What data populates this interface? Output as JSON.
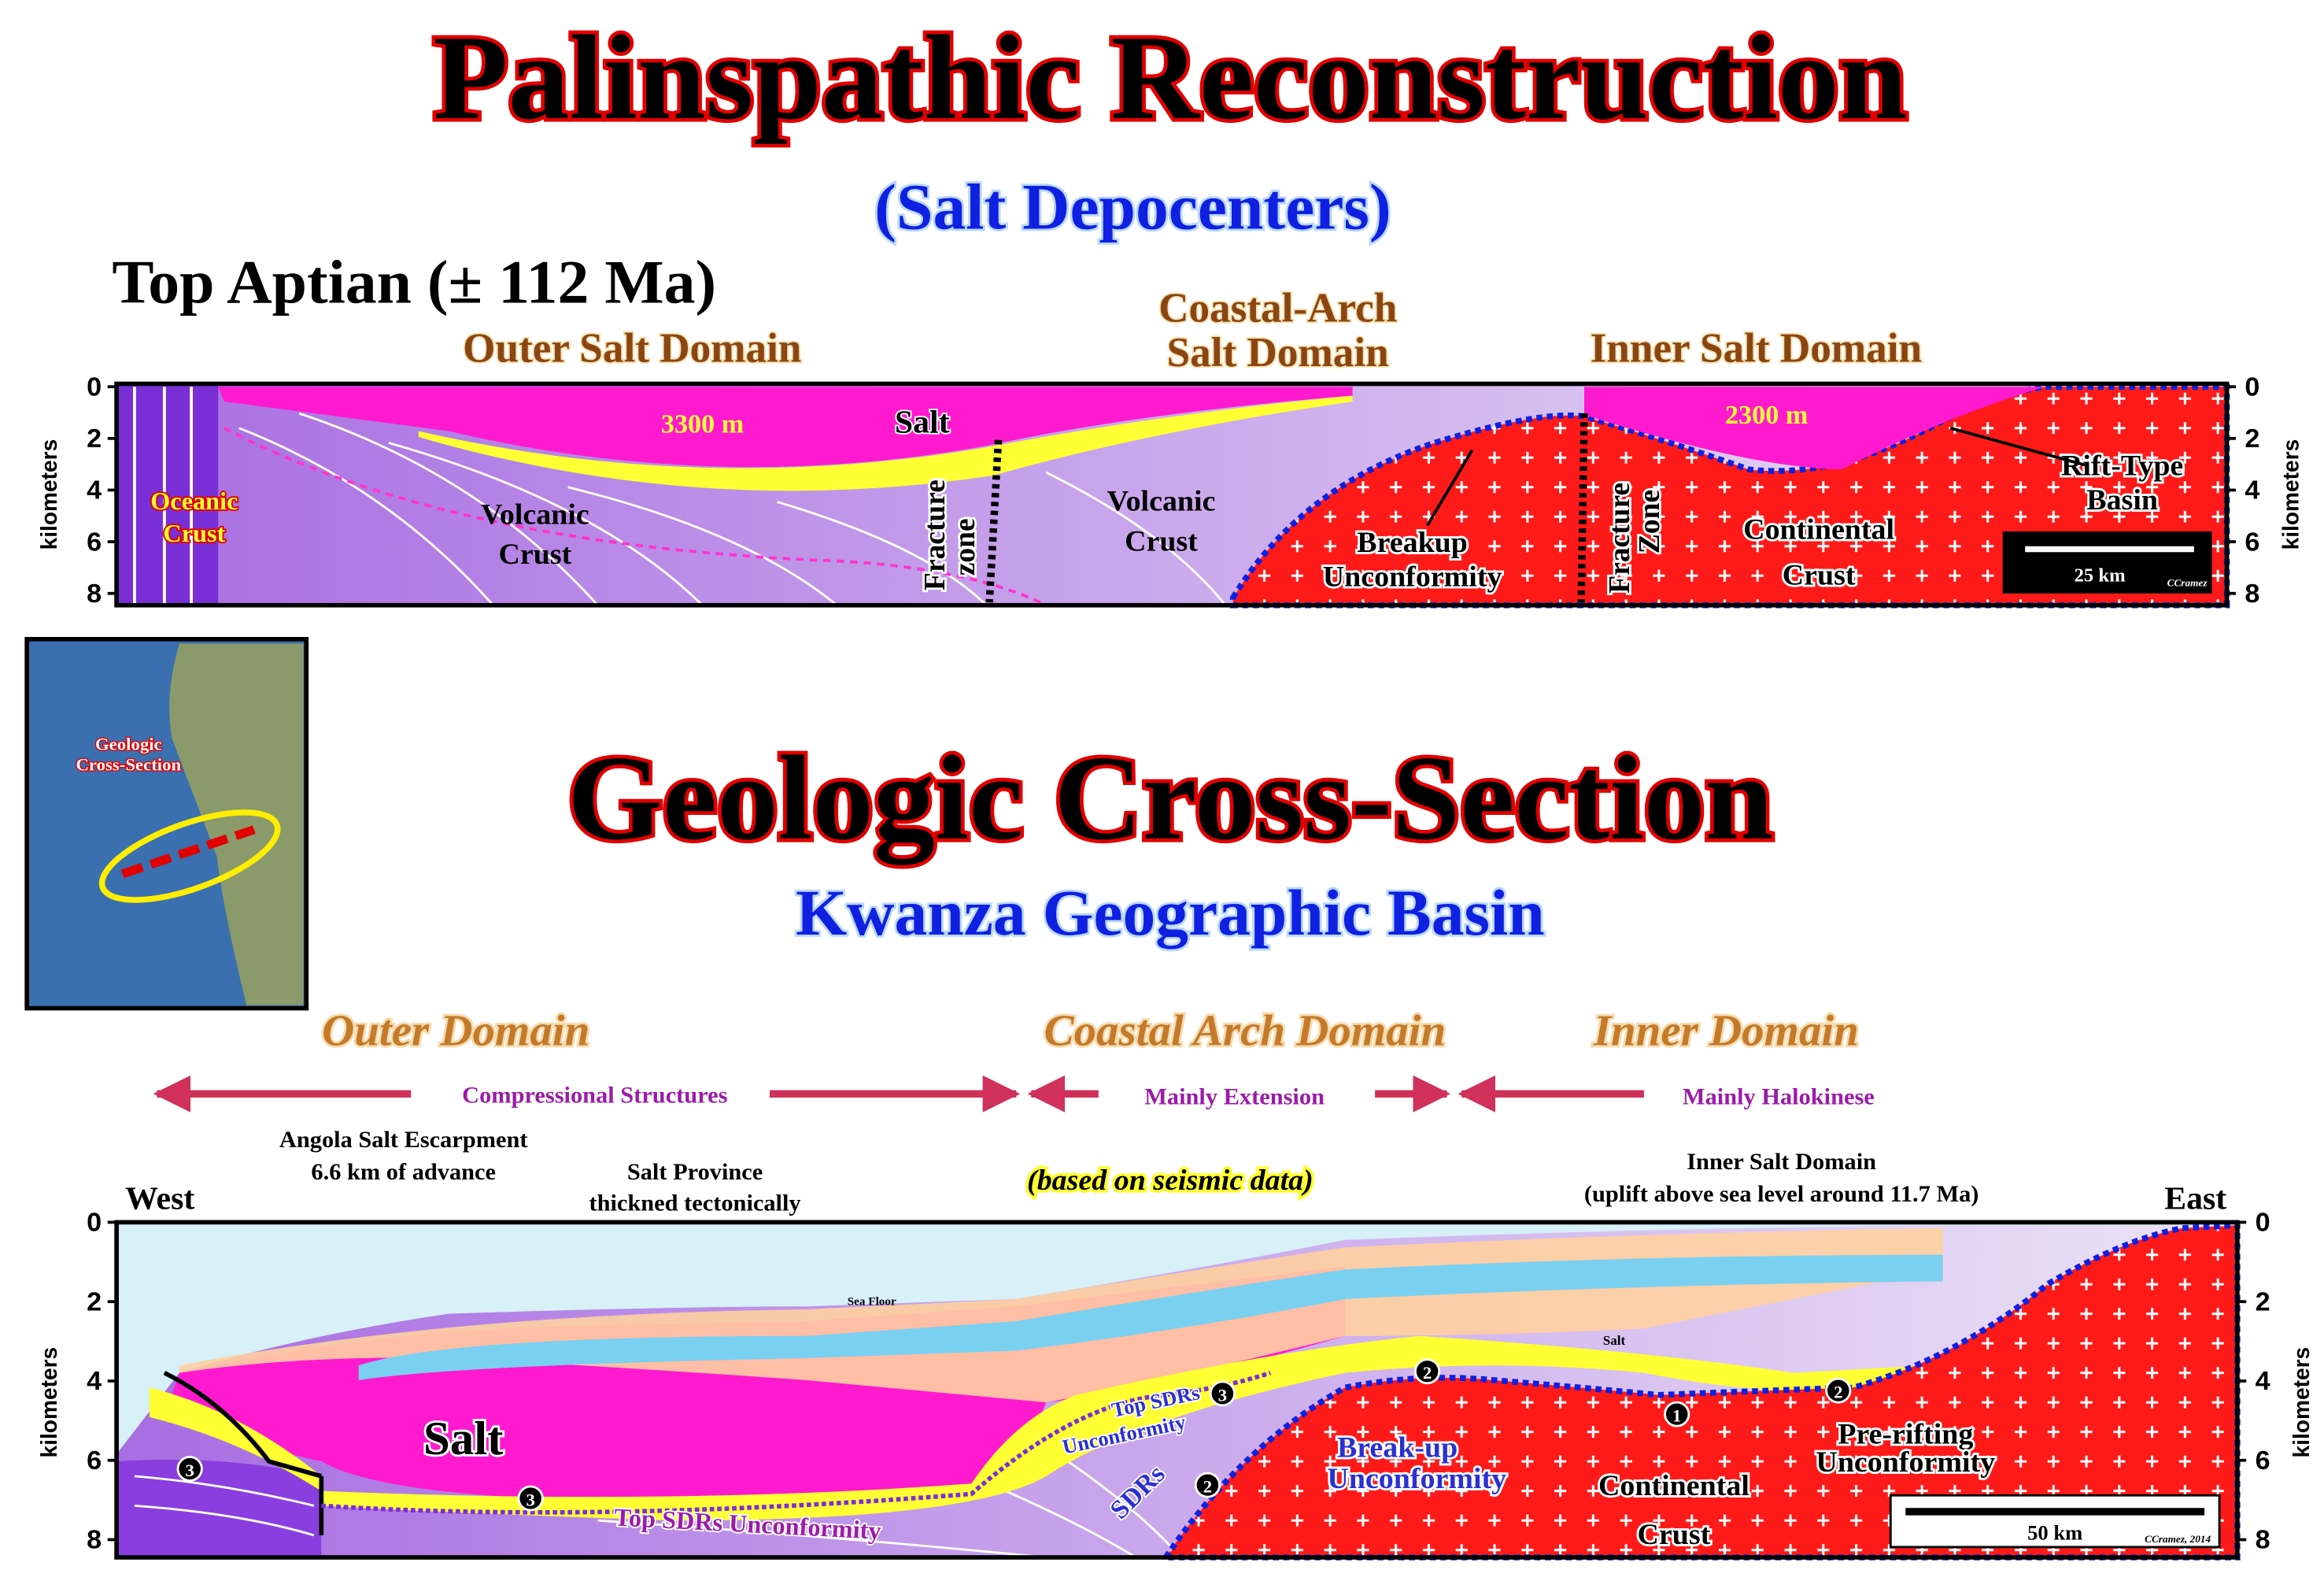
{
  "top_section": {
    "title": "Palinspathic Reconstruction",
    "subtitle": "(Salt Depocenters)",
    "age": "Top Aptian (± 112 Ma)",
    "domains": {
      "outer": [
        "Outer Salt Domain"
      ],
      "coastal_arch": [
        "Coastal-Arch",
        "Salt Domain"
      ],
      "inner": [
        "Inner Salt Domain"
      ]
    },
    "labels": {
      "outer_thickness": "3300 m",
      "salt": "Salt",
      "inner_thickness": "2300 m",
      "oceanic_crust": [
        "Oceanic",
        "Crust"
      ],
      "volcanic_crust_left": [
        "Volcanic",
        "Crust"
      ],
      "fracture_zone_left": [
        "Fracture",
        "zone"
      ],
      "volcanic_crust_right": [
        "Volcanic",
        "Crust"
      ],
      "breakup_unconformity": [
        "Breakup",
        "Unconformity"
      ],
      "fracture_zone_right": [
        "Fracture",
        "Zone"
      ],
      "continental_crust": [
        "Continental",
        "Crust"
      ],
      "rift_basin": [
        "Rift-Type",
        "Basin"
      ]
    },
    "scale_bar": "25 km",
    "credit": "CCramez",
    "axis_label": "kilometers",
    "depth_ticks": [
      0,
      2,
      4,
      6,
      8
    ]
  },
  "map": {
    "label": [
      "Geologic",
      "Cross-Section"
    ]
  },
  "bottom_section": {
    "title": "Geologic Cross-Section",
    "subtitle": "Kwanza Geographic Basin",
    "domains": [
      "Outer Domain",
      "Coastal Arch Domain",
      "Inner Domain"
    ],
    "regimes": [
      "Compressional Structures",
      "Mainly Extension",
      "Mainly Halokinese"
    ],
    "notes": {
      "escarpment": [
        "Angola Salt Escarpment",
        "6.6 km of advance"
      ],
      "salt_province": [
        "Salt Province",
        "thickned tectonically"
      ],
      "seismic": "(based on seismic data)",
      "inner_salt": [
        "Inner  Salt Domain",
        "(uplift above sea level around 11.7 Ma)"
      ]
    },
    "west": "West",
    "east": "East",
    "labels": {
      "sea_floor": "Sea Floor",
      "salt_big": "Salt",
      "salt_small": "Salt",
      "top_sdrs_upper": [
        "Top SDRs",
        "Unconformity"
      ],
      "top_sdrs_lower": "Top SDRs Unconformity",
      "sdrs": "SDRs",
      "breakup": [
        "Break-up",
        "Unconformity"
      ],
      "continental_crust": [
        "Continental",
        "Crust"
      ],
      "pre_rifting": [
        "Pre-rifting",
        "Unconformity"
      ]
    },
    "markers": [
      "1",
      "2",
      "3"
    ],
    "scale_bar": "50 km",
    "credit": "CCramez, 2014",
    "axis_label": "kilometers",
    "depth_ticks": [
      0,
      2,
      4,
      6,
      8
    ]
  }
}
